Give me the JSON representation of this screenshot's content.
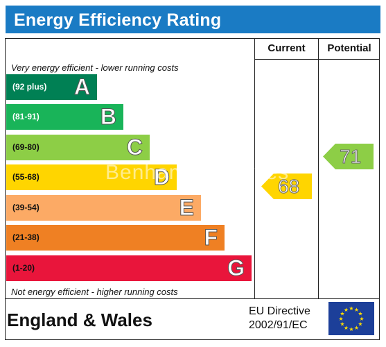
{
  "title": "Energy Efficiency Rating",
  "columns": {
    "current": "Current",
    "potential": "Potential"
  },
  "notes": {
    "top": "Very energy efficient - lower running costs",
    "bottom": "Not energy efficient - higher running costs"
  },
  "watermark": "Benham & Reeves",
  "footer": {
    "region": "England & Wales",
    "directive_line1": "EU Directive",
    "directive_line2": "2002/91/EC"
  },
  "colors": {
    "title_bar": "#1a7bc4",
    "A": "#008054",
    "B": "#19b459",
    "C": "#8dce46",
    "D": "#ffd500",
    "E": "#fcaa65",
    "F": "#ef8023",
    "G": "#e9153b",
    "current_arrow": "#ffd500",
    "potential_arrow": "#8dce46"
  },
  "chart_data": {
    "type": "bar",
    "title": "Energy Efficiency Rating",
    "bands": [
      {
        "letter": "A",
        "range": "(92 plus)",
        "min": 92,
        "max": 100
      },
      {
        "letter": "B",
        "range": "(81-91)",
        "min": 81,
        "max": 91
      },
      {
        "letter": "C",
        "range": "(69-80)",
        "min": 69,
        "max": 80
      },
      {
        "letter": "D",
        "range": "(55-68)",
        "min": 55,
        "max": 68
      },
      {
        "letter": "E",
        "range": "(39-54)",
        "min": 39,
        "max": 54
      },
      {
        "letter": "F",
        "range": "(21-38)",
        "min": 21,
        "max": 38
      },
      {
        "letter": "G",
        "range": "(1-20)",
        "min": 1,
        "max": 20
      }
    ],
    "current": {
      "value": 68,
      "band": "D"
    },
    "potential": {
      "value": 71,
      "band": "C"
    }
  }
}
